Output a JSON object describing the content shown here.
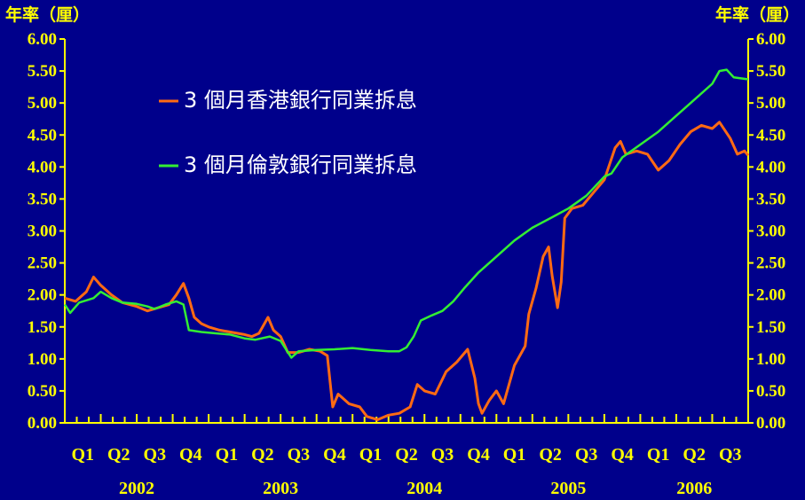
{
  "chart_data": {
    "type": "line",
    "y_axis_label_left": "年率（厘）",
    "y_axis_label_right": "年率（厘）",
    "ylim": [
      0,
      6
    ],
    "y_ticks": [
      "0.00",
      "0.50",
      "1.00",
      "1.50",
      "2.00",
      "2.50",
      "3.00",
      "3.50",
      "4.00",
      "4.50",
      "5.00",
      "5.50",
      "6.00"
    ],
    "quarter_labels": [
      "Q1",
      "Q2",
      "Q3",
      "Q4",
      "Q1",
      "Q2",
      "Q3",
      "Q4",
      "Q1",
      "Q2",
      "Q3",
      "Q4",
      "Q1",
      "Q2",
      "Q3",
      "Q4",
      "Q1",
      "Q2",
      "Q3"
    ],
    "year_labels": [
      "2002",
      "2003",
      "2004",
      "2005",
      "2006"
    ],
    "x_range_quarters": [
      0,
      19
    ],
    "legend_position": "upper-left",
    "series": [
      {
        "name": "3 個月香港銀行同業拆息",
        "color": "#ff6a13",
        "points": [
          [
            0,
            1.95
          ],
          [
            0.3,
            1.9
          ],
          [
            0.6,
            2.05
          ],
          [
            0.8,
            2.28
          ],
          [
            1.0,
            2.15
          ],
          [
            1.3,
            2.0
          ],
          [
            1.6,
            1.88
          ],
          [
            2.0,
            1.82
          ],
          [
            2.3,
            1.75
          ],
          [
            2.6,
            1.8
          ],
          [
            2.9,
            1.85
          ],
          [
            3.1,
            2.0
          ],
          [
            3.3,
            2.18
          ],
          [
            3.45,
            1.95
          ],
          [
            3.6,
            1.65
          ],
          [
            3.8,
            1.55
          ],
          [
            4.0,
            1.5
          ],
          [
            4.3,
            1.45
          ],
          [
            4.6,
            1.42
          ],
          [
            5.0,
            1.38
          ],
          [
            5.2,
            1.35
          ],
          [
            5.4,
            1.4
          ],
          [
            5.65,
            1.65
          ],
          [
            5.8,
            1.45
          ],
          [
            6.0,
            1.35
          ],
          [
            6.2,
            1.1
          ],
          [
            6.5,
            1.1
          ],
          [
            6.8,
            1.15
          ],
          [
            7.1,
            1.12
          ],
          [
            7.3,
            1.05
          ],
          [
            7.45,
            0.25
          ],
          [
            7.6,
            0.45
          ],
          [
            7.9,
            0.3
          ],
          [
            8.2,
            0.25
          ],
          [
            8.4,
            0.1
          ],
          [
            8.7,
            0.05
          ],
          [
            9.0,
            0.12
          ],
          [
            9.3,
            0.15
          ],
          [
            9.6,
            0.25
          ],
          [
            9.8,
            0.6
          ],
          [
            10.0,
            0.5
          ],
          [
            10.3,
            0.45
          ],
          [
            10.6,
            0.8
          ],
          [
            10.9,
            0.95
          ],
          [
            11.2,
            1.15
          ],
          [
            11.4,
            0.7
          ],
          [
            11.5,
            0.3
          ],
          [
            11.6,
            0.15
          ],
          [
            11.8,
            0.35
          ],
          [
            12.0,
            0.5
          ],
          [
            12.2,
            0.3
          ],
          [
            12.5,
            0.9
          ],
          [
            12.8,
            1.2
          ],
          [
            12.9,
            1.7
          ],
          [
            13.1,
            2.1
          ],
          [
            13.3,
            2.6
          ],
          [
            13.45,
            2.75
          ],
          [
            13.55,
            2.3
          ],
          [
            13.7,
            1.8
          ],
          [
            13.8,
            2.2
          ],
          [
            13.9,
            3.2
          ],
          [
            14.1,
            3.35
          ],
          [
            14.4,
            3.4
          ],
          [
            14.7,
            3.6
          ],
          [
            15.0,
            3.8
          ],
          [
            15.3,
            4.3
          ],
          [
            15.45,
            4.4
          ],
          [
            15.6,
            4.2
          ],
          [
            15.9,
            4.25
          ],
          [
            16.2,
            4.2
          ],
          [
            16.5,
            3.95
          ],
          [
            16.8,
            4.1
          ],
          [
            17.1,
            4.35
          ],
          [
            17.4,
            4.55
          ],
          [
            17.7,
            4.65
          ],
          [
            18.0,
            4.6
          ],
          [
            18.2,
            4.7
          ],
          [
            18.5,
            4.45
          ],
          [
            18.7,
            4.2
          ],
          [
            18.9,
            4.25
          ],
          [
            19.0,
            4.18
          ]
        ]
      },
      {
        "name": "3 個月倫敦銀行同業拆息",
        "color": "#33ee33",
        "points": [
          [
            0,
            1.85
          ],
          [
            0.15,
            1.72
          ],
          [
            0.4,
            1.88
          ],
          [
            0.8,
            1.95
          ],
          [
            1.0,
            2.05
          ],
          [
            1.3,
            1.95
          ],
          [
            1.6,
            1.88
          ],
          [
            2.0,
            1.86
          ],
          [
            2.3,
            1.82
          ],
          [
            2.5,
            1.78
          ],
          [
            2.8,
            1.85
          ],
          [
            3.1,
            1.9
          ],
          [
            3.3,
            1.85
          ],
          [
            3.45,
            1.45
          ],
          [
            3.8,
            1.42
          ],
          [
            4.2,
            1.4
          ],
          [
            4.6,
            1.38
          ],
          [
            5.0,
            1.32
          ],
          [
            5.3,
            1.3
          ],
          [
            5.7,
            1.35
          ],
          [
            6.0,
            1.28
          ],
          [
            6.3,
            1.02
          ],
          [
            6.5,
            1.12
          ],
          [
            7.0,
            1.14
          ],
          [
            7.5,
            1.15
          ],
          [
            8.0,
            1.17
          ],
          [
            8.5,
            1.14
          ],
          [
            9.0,
            1.12
          ],
          [
            9.3,
            1.12
          ],
          [
            9.5,
            1.18
          ],
          [
            9.7,
            1.35
          ],
          [
            9.9,
            1.6
          ],
          [
            10.2,
            1.68
          ],
          [
            10.5,
            1.75
          ],
          [
            10.8,
            1.9
          ],
          [
            11.1,
            2.1
          ],
          [
            11.5,
            2.35
          ],
          [
            12.0,
            2.6
          ],
          [
            12.5,
            2.85
          ],
          [
            13.0,
            3.05
          ],
          [
            13.5,
            3.2
          ],
          [
            14.0,
            3.35
          ],
          [
            14.5,
            3.55
          ],
          [
            15.0,
            3.85
          ],
          [
            15.2,
            3.9
          ],
          [
            15.5,
            4.15
          ],
          [
            16.0,
            4.35
          ],
          [
            16.5,
            4.55
          ],
          [
            17.0,
            4.8
          ],
          [
            17.5,
            5.05
          ],
          [
            18.0,
            5.3
          ],
          [
            18.2,
            5.5
          ],
          [
            18.4,
            5.52
          ],
          [
            18.6,
            5.4
          ],
          [
            19.0,
            5.37
          ]
        ]
      }
    ]
  }
}
